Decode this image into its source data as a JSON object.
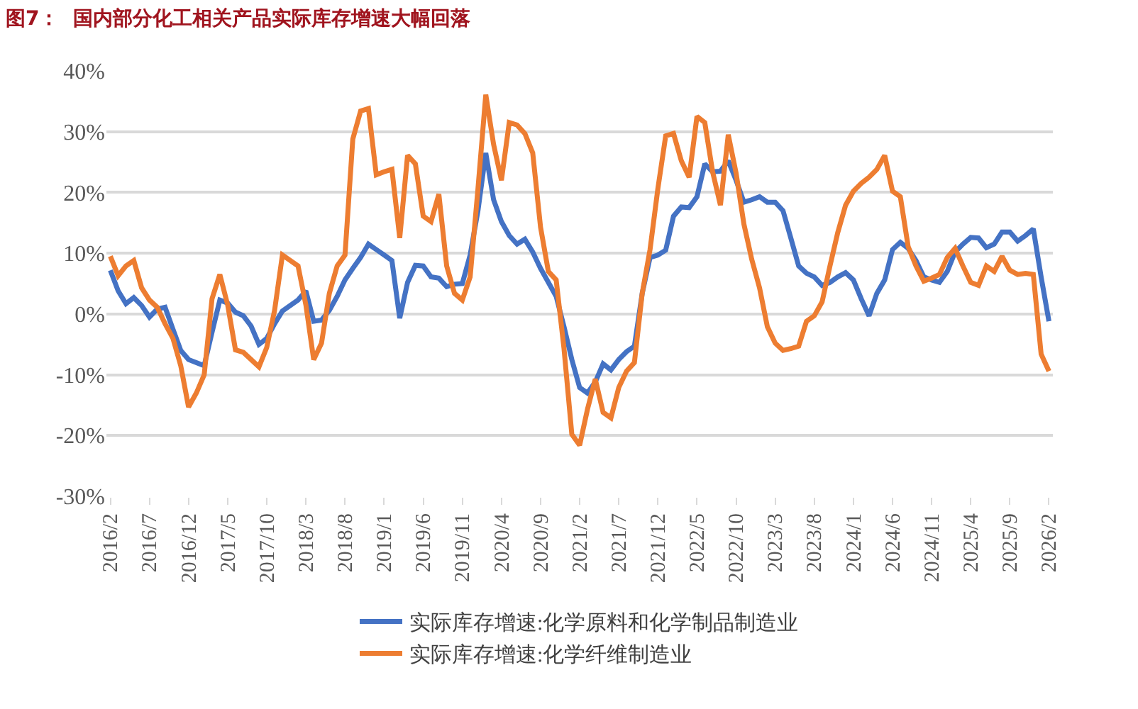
{
  "chart_data": {
    "type": "line",
    "title": "图7：  国内部分化工相关产品实际库存增速大幅回落",
    "categories": [
      "2016/2",
      null,
      null,
      null,
      null,
      "2016/7",
      null,
      null,
      null,
      null,
      "2016/12",
      null,
      null,
      null,
      null,
      "2017/5",
      null,
      null,
      null,
      null,
      "2017/10",
      null,
      null,
      null,
      null,
      "2018/3",
      null,
      null,
      null,
      null,
      "2018/8",
      null,
      null,
      null,
      null,
      "2019/1",
      null,
      null,
      null,
      null,
      "2019/6",
      null,
      null,
      null,
      null,
      "2019/11",
      null,
      null,
      null,
      null,
      "2020/4",
      null,
      null,
      null,
      null,
      "2020/9",
      null,
      null,
      null,
      null,
      "2021/2",
      null,
      null,
      null,
      null,
      "2021/7",
      null,
      null,
      null,
      null,
      "2021/12",
      null,
      null,
      null,
      null,
      "2022/5",
      null,
      null,
      null,
      null,
      "2022/10",
      null,
      null,
      null,
      null,
      "2023/3",
      null,
      null,
      null,
      null,
      "2023/8",
      null,
      null,
      null,
      null,
      "2024/1",
      null,
      null,
      null,
      null,
      "2024/6",
      null,
      null,
      null,
      null,
      "2024/11",
      null,
      null,
      null,
      null,
      "2025/4",
      null,
      null,
      null,
      null,
      "2025/9",
      null,
      null,
      null,
      null,
      "2026/2"
    ],
    "series": [
      {
        "name": "实际库存增速:化学原料和化学制品制造业",
        "color": "#4472c4",
        "values": [
          7.2,
          3.8,
          1.7,
          2.7,
          1.4,
          -0.5,
          0.8,
          1.1,
          -2.5,
          -6,
          -7.5,
          -8,
          -8.5,
          -3,
          2.3,
          1.8,
          0.3,
          -0.3,
          -2,
          -5,
          -4,
          -1.6,
          0.5,
          1.4,
          2.3,
          3.8,
          -1.2,
          -1,
          0.6,
          2.9,
          5.6,
          7.5,
          9.3,
          11.5,
          10.6,
          9.7,
          8.8,
          -0.7,
          5.2,
          8,
          7.9,
          6.1,
          5.9,
          4.5,
          4.9,
          5,
          9.7,
          17,
          26.5,
          18.8,
          15.2,
          12.9,
          11.5,
          12.3,
          10.2,
          7.5,
          5.2,
          2.9,
          -2.1,
          -7.5,
          -12.1,
          -13,
          -11.2,
          -8.2,
          -9.2,
          -7.5,
          -6.2,
          -5.3,
          3.4,
          9.3,
          9.7,
          10.5,
          16.1,
          17.6,
          17.5,
          19.3,
          24.7,
          23.4,
          23.5,
          25.2,
          22,
          18.4,
          18.8,
          19.3,
          18.4,
          18.4,
          17,
          12.5,
          7.9,
          6.7,
          6.1,
          4.7,
          5.2,
          6.1,
          6.8,
          5.6,
          2.5,
          -0.3,
          3.4,
          5.6,
          10.6,
          11.8,
          10.8,
          8.8,
          6.1,
          5.6,
          5.2,
          7,
          10.2,
          11.5,
          12.6,
          12.5,
          10.9,
          11.5,
          13.5,
          13.5,
          12,
          12.9,
          14,
          6.1,
          -1.2
        ]
      },
      {
        "name": "实际库存增速:化学纤维制造业",
        "color": "#ed7d31",
        "values": [
          9.5,
          6.3,
          7.9,
          8.8,
          4.3,
          2.3,
          1.1,
          -1.6,
          -4,
          -8.5,
          -15.3,
          -13,
          -10,
          2.5,
          6.5,
          1.5,
          -5.9,
          -6.3,
          -7.5,
          -8.7,
          -5.5,
          0.6,
          9.7,
          8.8,
          7.9,
          1.5,
          -7.5,
          -4.8,
          3.4,
          7.9,
          9.7,
          28.8,
          33.4,
          33.8,
          22.9,
          23.4,
          23.8,
          12.5,
          26.1,
          24.7,
          16.1,
          15.2,
          19.7,
          7.9,
          3.4,
          2.3,
          6.1,
          20.6,
          36.1,
          27.9,
          22,
          31.5,
          31.1,
          29.7,
          26.5,
          14.3,
          7,
          5.6,
          -5.7,
          -19.8,
          -21.6,
          -15.7,
          -10.7,
          -16.2,
          -17.1,
          -12.1,
          -9.4,
          -8,
          3.4,
          10.6,
          20.6,
          29.3,
          29.7,
          25.2,
          22.5,
          32.5,
          31.5,
          23.4,
          17.9,
          29.5,
          23.2,
          14.8,
          9,
          4.3,
          -2.1,
          -4.8,
          -6,
          -5.7,
          -5.3,
          -1.2,
          -0.3,
          2,
          7.9,
          13.4,
          17.9,
          20.2,
          21.5,
          22.5,
          23.8,
          26.1,
          20.2,
          19.3,
          11.1,
          7.9,
          5.4,
          5.9,
          6.5,
          9.3,
          10.8,
          7.9,
          5.2,
          4.7,
          7.9,
          7,
          9.5,
          7.2,
          6.5,
          6.7,
          6.5,
          -6.6,
          -9.4
        ]
      }
    ],
    "ylim": [
      -30,
      40
    ],
    "yticks": [
      {
        "value": -30,
        "label": "-30%"
      },
      {
        "value": -20,
        "label": "-20%"
      },
      {
        "value": -10,
        "label": "-10%"
      },
      {
        "value": 0,
        "label": "0%"
      },
      {
        "value": 10,
        "label": "10%"
      },
      {
        "value": 20,
        "label": "20%"
      },
      {
        "value": 30,
        "label": "30%"
      },
      {
        "value": 40,
        "label": "40%"
      }
    ],
    "grid": "y",
    "legend": "bottom",
    "marker": "none",
    "line_style": "solid"
  }
}
